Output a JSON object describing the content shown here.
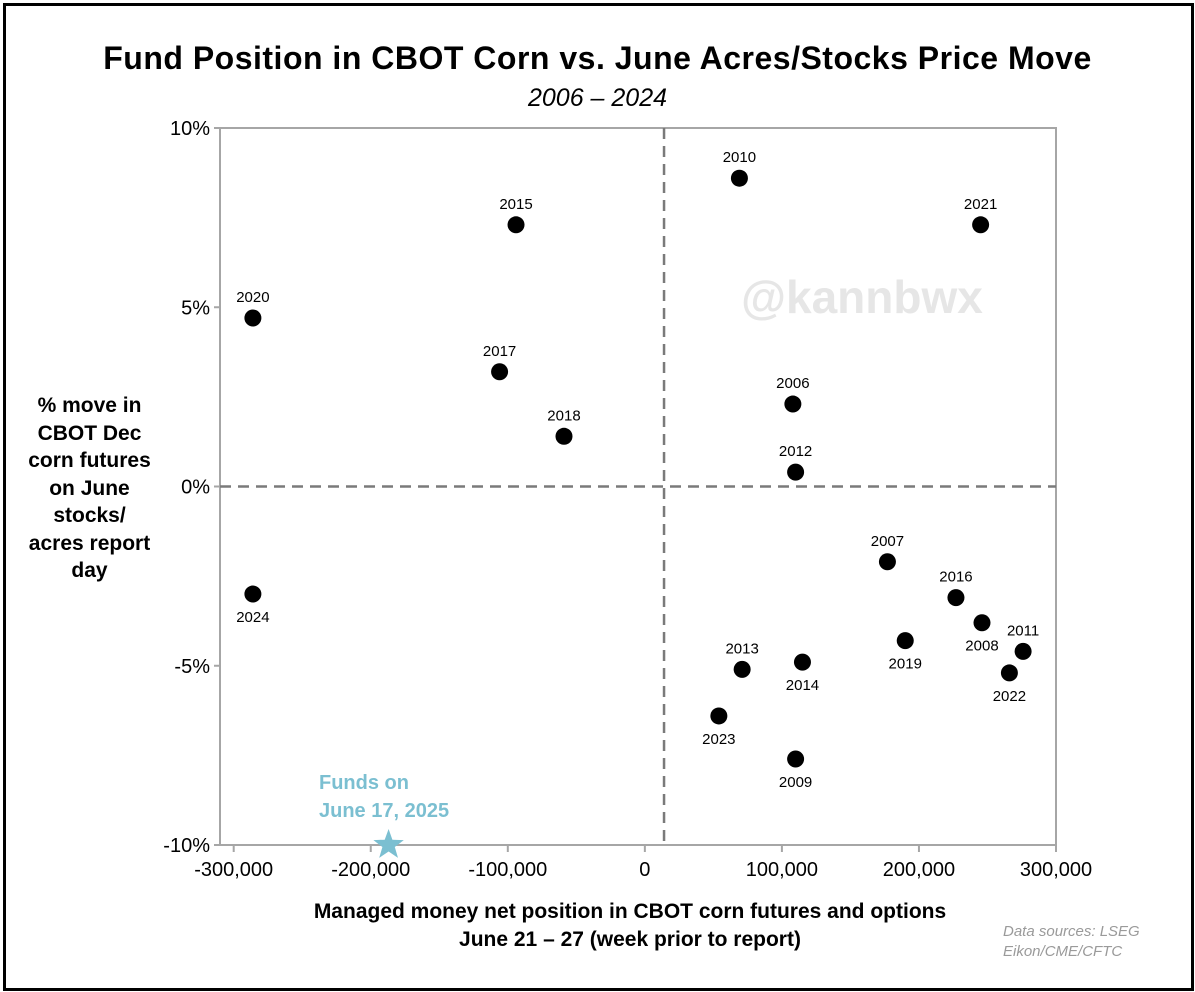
{
  "chart_data": {
    "type": "scatter",
    "title": "Fund Position in CBOT Corn vs. June Acres/Stocks Price Move",
    "subtitle": "2006 – 2024",
    "xlabel": "Managed money net position in CBOT corn futures and options June 21 – 27 (week prior to report)",
    "ylabel_lines": [
      "% move in",
      "CBOT Dec",
      "corn futures",
      "on June",
      "stocks/",
      "acres report",
      "day"
    ],
    "xlim": [
      -310000,
      300000
    ],
    "ylim": [
      -10,
      10
    ],
    "x_ticks": [
      -300000,
      -200000,
      -100000,
      0,
      100000,
      200000,
      300000
    ],
    "x_tick_labels": [
      "-300,000",
      "-200,000",
      "-100,000",
      "0",
      "100,000",
      "200,000",
      "300,000"
    ],
    "y_ticks": [
      -10,
      -5,
      0,
      5,
      10
    ],
    "y_tick_labels": [
      "-10%",
      "-5%",
      "0%",
      "5%",
      "10%"
    ],
    "reference_lines": {
      "x": 14000,
      "y": 0
    },
    "points": [
      {
        "label": "2006",
        "x": 108000,
        "y": 2.3,
        "label_pos": "above"
      },
      {
        "label": "2007",
        "x": 177000,
        "y": -2.1,
        "label_pos": "above"
      },
      {
        "label": "2008",
        "x": 246000,
        "y": -3.8,
        "label_pos": "below"
      },
      {
        "label": "2009",
        "x": 110000,
        "y": -7.6,
        "label_pos": "below"
      },
      {
        "label": "2010",
        "x": 69000,
        "y": 8.6,
        "label_pos": "above"
      },
      {
        "label": "2011",
        "x": 276000,
        "y": -4.6,
        "label_pos": "above"
      },
      {
        "label": "2012",
        "x": 110000,
        "y": 0.4,
        "label_pos": "above"
      },
      {
        "label": "2013",
        "x": 71000,
        "y": -5.1,
        "label_pos": "above"
      },
      {
        "label": "2014",
        "x": 115000,
        "y": -4.9,
        "label_pos": "below"
      },
      {
        "label": "2015",
        "x": -94000,
        "y": 7.3,
        "label_pos": "above"
      },
      {
        "label": "2016",
        "x": 227000,
        "y": -3.1,
        "label_pos": "above"
      },
      {
        "label": "2017",
        "x": -106000,
        "y": 3.2,
        "label_pos": "above"
      },
      {
        "label": "2018",
        "x": -59000,
        "y": 1.4,
        "label_pos": "above"
      },
      {
        "label": "2019",
        "x": 190000,
        "y": -4.3,
        "label_pos": "below"
      },
      {
        "label": "2020",
        "x": -286000,
        "y": 4.7,
        "label_pos": "above"
      },
      {
        "label": "2021",
        "x": 245000,
        "y": 7.3,
        "label_pos": "above"
      },
      {
        "label": "2022",
        "x": 266000,
        "y": -5.2,
        "label_pos": "below"
      },
      {
        "label": "2023",
        "x": 54000,
        "y": -6.4,
        "label_pos": "below"
      },
      {
        "label": "2024",
        "x": -286000,
        "y": -3.0,
        "label_pos": "below"
      }
    ],
    "highlight": {
      "label_lines": [
        "Funds on",
        "June 17, 2025"
      ],
      "x": -187000,
      "y": -10,
      "color": "#7bbfd1"
    },
    "watermark": "@kannbwx",
    "source_lines": [
      "Data sources: LSEG",
      "Eikon/CME/CFTC"
    ],
    "colors": {
      "point": "#000000",
      "reference_line": "#7a7a7a",
      "axis": "#a6a6a6",
      "watermark": "#e6e6e6",
      "source": "#9a9a9a"
    }
  }
}
